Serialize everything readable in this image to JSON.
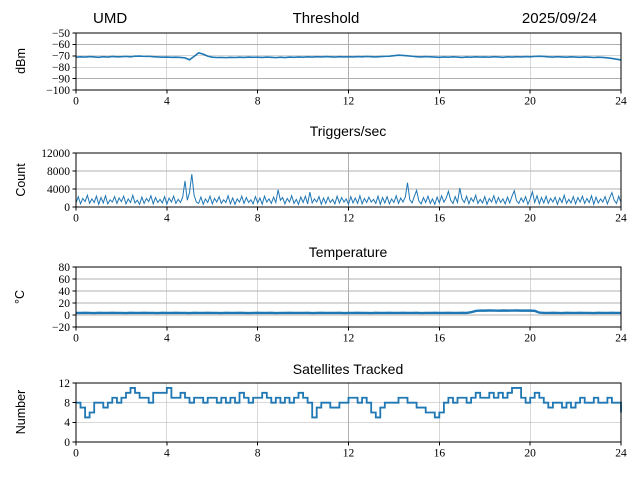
{
  "header": {
    "left": "UMD",
    "right": "2025/09/24"
  },
  "style": {
    "line_color": "#1f77b4",
    "grid_color": "#b0b0b0",
    "spine_color": "#000000",
    "background": "#ffffff",
    "text_color": "#000000"
  },
  "chart_data": [
    {
      "type": "line",
      "title": "Threshold",
      "xlabel": "",
      "ylabel": "dBm",
      "x_unit": "hours",
      "xlim": [
        0,
        24
      ],
      "ylim": [
        -100,
        -50
      ],
      "xticks": [
        0,
        4,
        8,
        12,
        16,
        20,
        24
      ],
      "yticks": [
        -50,
        -60,
        -70,
        -80,
        -90,
        -100
      ],
      "grid": true,
      "line_width": 1.6,
      "x_start": 0,
      "x_step": 0.2,
      "values": [
        -71.2,
        -70.9,
        -71.1,
        -70.7,
        -71.0,
        -71.3,
        -70.8,
        -71.1,
        -70.6,
        -70.9,
        -70.8,
        -70.5,
        -70.9,
        -70.3,
        -70.2,
        -70.5,
        -70.4,
        -70.8,
        -71.0,
        -71.2,
        -71.1,
        -71.3,
        -71.2,
        -71.4,
        -71.8,
        -73.5,
        -70.5,
        -67.4,
        -68.5,
        -70.3,
        -71.2,
        -71.5,
        -71.4,
        -71.6,
        -71.3,
        -71.5,
        -71.2,
        -71.4,
        -71.1,
        -71.3,
        -71.2,
        -71.4,
        -71.1,
        -71.3,
        -71.6,
        -71.2,
        -71.5,
        -71.1,
        -71.3,
        -71.0,
        -71.2,
        -70.9,
        -71.1,
        -70.8,
        -71.0,
        -70.7,
        -70.9,
        -71.1,
        -70.8,
        -71.0,
        -70.8,
        -71.0,
        -70.7,
        -70.9,
        -70.6,
        -70.8,
        -71.0,
        -70.7,
        -70.5,
        -70.3,
        -69.9,
        -69.5,
        -69.7,
        -70.0,
        -70.4,
        -70.8,
        -71.0,
        -70.7,
        -70.9,
        -71.1,
        -71.3,
        -71.0,
        -71.2,
        -70.9,
        -71.1,
        -71.4,
        -71.0,
        -71.2,
        -70.9,
        -71.1,
        -71.0,
        -71.2,
        -70.8,
        -71.0,
        -71.3,
        -70.9,
        -71.1,
        -70.8,
        -71.0,
        -70.7,
        -70.9,
        -70.5,
        -70.3,
        -70.6,
        -70.9,
        -71.1,
        -70.8,
        -71.0,
        -71.2,
        -70.9,
        -71.1,
        -71.3,
        -71.0,
        -71.2,
        -71.5,
        -71.2,
        -71.4,
        -71.8,
        -72.3,
        -73.0,
        -73.6
      ]
    },
    {
      "type": "line",
      "title": "Triggers/sec",
      "xlabel": "",
      "ylabel": "Count",
      "x_unit": "hours",
      "xlim": [
        0,
        24
      ],
      "ylim": [
        0,
        12000
      ],
      "xticks": [
        0,
        4,
        8,
        12,
        16,
        20,
        24
      ],
      "yticks": [
        0,
        4000,
        8000,
        12000
      ],
      "grid": true,
      "line_width": 1.0,
      "x_start": 0,
      "x_step": 0.1,
      "values": [
        900,
        2300,
        700,
        1900,
        1200,
        2600,
        800,
        1800,
        1000,
        2400,
        600,
        2100,
        900,
        2500,
        700,
        1600,
        1100,
        2300,
        800,
        2000,
        1200,
        2400,
        700,
        1800,
        1000,
        2600,
        900,
        1500,
        600,
        2200,
        800,
        1900,
        1200,
        2500,
        700,
        2100,
        1000,
        1700,
        900,
        2300,
        600,
        2000,
        1100,
        2400,
        800,
        1700,
        1000,
        2200,
        5800,
        1500,
        3200,
        7300,
        2600,
        1100,
        800,
        2200,
        600,
        1800,
        1000,
        2400,
        700,
        1900,
        1100,
        2300,
        800,
        1600,
        1000,
        2500,
        700,
        2000,
        600,
        1800,
        1100,
        2400,
        800,
        2100,
        1000,
        1600,
        700,
        2300,
        900,
        2000,
        600,
        2400,
        1100,
        1800,
        800,
        2200,
        1000,
        3800,
        1500,
        2100,
        700,
        1900,
        1100,
        2500,
        800,
        1700,
        600,
        2200,
        1000,
        2400,
        700,
        3300,
        900,
        1800,
        1100,
        2300,
        600,
        2000,
        800,
        2200,
        1000,
        1700,
        700,
        2400,
        900,
        2100,
        1100,
        1800,
        600,
        2300,
        900,
        2000,
        800,
        2500,
        700,
        1900,
        1000,
        2200,
        1100,
        1700,
        800,
        2400,
        600,
        2100,
        900,
        2300,
        700,
        1800,
        1000,
        2500,
        800,
        2000,
        1100,
        2200,
        5400,
        1600,
        900,
        2400,
        3700,
        1300,
        700,
        2100,
        1000,
        2400,
        800,
        1800,
        600,
        2200,
        900,
        2500,
        1100,
        1900,
        3500,
        1500,
        800,
        2300,
        1000,
        4200,
        1800,
        1000,
        2400,
        700,
        2000,
        1200,
        2600,
        800,
        1700,
        900,
        2300,
        600,
        1900,
        1100,
        2500,
        800,
        2100,
        1000,
        1800,
        700,
        2200,
        900,
        2400,
        3600,
        1400,
        800,
        2000,
        1100,
        2300,
        600,
        1800,
        3400,
        1000,
        2500,
        700,
        2100,
        900,
        2400,
        800,
        1900,
        1100,
        2200,
        600,
        2000,
        1000,
        2600,
        800,
        1700,
        900,
        2300,
        700,
        2100,
        1100,
        2400,
        800,
        1900,
        1000,
        2500,
        600,
        2200,
        900,
        1800,
        1100,
        2300,
        700,
        2000,
        3200,
        1500,
        800,
        2400,
        1000
      ]
    },
    {
      "type": "line",
      "title": "Temperature",
      "xlabel": "",
      "ylabel": "°C",
      "x_unit": "hours",
      "xlim": [
        0,
        24
      ],
      "ylim": [
        -20,
        80
      ],
      "xticks": [
        0,
        4,
        8,
        12,
        16,
        20,
        24
      ],
      "yticks": [
        -20,
        0,
        20,
        40,
        60,
        80
      ],
      "grid": true,
      "line_width": 2.4,
      "x_start": 0,
      "x_step": 0.2,
      "values": [
        3.5,
        3.4,
        3.6,
        3.5,
        3.3,
        3.6,
        3.4,
        3.5,
        3.6,
        3.4,
        3.5,
        3.3,
        3.6,
        3.4,
        3.5,
        3.6,
        3.4,
        3.5,
        3.3,
        3.6,
        3.4,
        3.5,
        3.6,
        3.4,
        3.5,
        3.3,
        3.6,
        3.5,
        3.4,
        3.6,
        3.5,
        3.4,
        3.3,
        3.6,
        3.5,
        3.4,
        3.6,
        3.5,
        3.3,
        3.4,
        3.6,
        3.5,
        3.4,
        3.6,
        3.3,
        3.5,
        3.4,
        3.6,
        3.5,
        3.4,
        3.5,
        3.6,
        3.3,
        3.4,
        3.6,
        3.5,
        3.4,
        3.5,
        3.6,
        3.3,
        3.5,
        3.4,
        3.6,
        3.5,
        3.4,
        3.3,
        3.6,
        3.5,
        3.4,
        3.6,
        3.4,
        3.5,
        3.6,
        3.4,
        3.5,
        3.6,
        3.3,
        3.5,
        3.4,
        3.6,
        3.5,
        3.4,
        3.6,
        3.5,
        3.4,
        3.6,
        3.5,
        4.6,
        6.8,
        7.4,
        7.3,
        7.5,
        7.4,
        7.2,
        7.5,
        7.3,
        7.4,
        7.5,
        7.3,
        7.4,
        7.3,
        6.9,
        4.0,
        3.5,
        3.4,
        3.6,
        3.5,
        3.3,
        3.6,
        3.4,
        3.5,
        3.6,
        3.4,
        3.5,
        3.3,
        3.6,
        3.5,
        3.4,
        3.6,
        3.5,
        3.4
      ]
    },
    {
      "type": "step",
      "title": "Satellites Tracked",
      "xlabel": "",
      "ylabel": "Number",
      "x_unit": "hours",
      "xlim": [
        0,
        24
      ],
      "ylim": [
        0,
        12
      ],
      "xticks": [
        0,
        4,
        8,
        12,
        16,
        20,
        24
      ],
      "yticks": [
        0,
        4,
        8,
        12
      ],
      "grid": true,
      "line_width": 1.8,
      "x_start": 0,
      "x_step": 0.2,
      "values": [
        8,
        7,
        5,
        6,
        8,
        8,
        7,
        8,
        9,
        8,
        9,
        10,
        11,
        10,
        9,
        9,
        8,
        10,
        10,
        10,
        11,
        9,
        9,
        10,
        9,
        8,
        9,
        9,
        8,
        9,
        9,
        8,
        9,
        8,
        9,
        8,
        10,
        9,
        8,
        9,
        9,
        10,
        9,
        8,
        9,
        8,
        9,
        8,
        9,
        10,
        9,
        8,
        5,
        7,
        8,
        8,
        7,
        7,
        8,
        8,
        9,
        9,
        8,
        9,
        8,
        6,
        5,
        7,
        8,
        8,
        8,
        9,
        9,
        8,
        8,
        7,
        7,
        6,
        6,
        5,
        6,
        8,
        9,
        8,
        9,
        9,
        8,
        9,
        10,
        9,
        9,
        10,
        9,
        10,
        9,
        10,
        11,
        11,
        9,
        8,
        9,
        10,
        9,
        8,
        7,
        8,
        8,
        7,
        8,
        7,
        8,
        9,
        8,
        8,
        9,
        8,
        8,
        9,
        8,
        8,
        6
      ]
    }
  ]
}
